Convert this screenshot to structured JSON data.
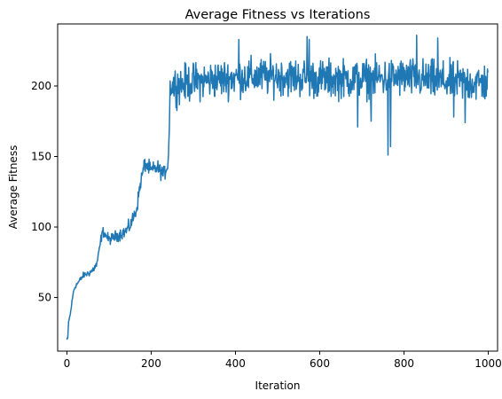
{
  "chart_data": {
    "type": "line",
    "title": "Average Fitness vs Iterations",
    "xlabel": "Iteration",
    "ylabel": "Average Fitness",
    "xlim": [
      -22,
      1022
    ],
    "ylim": [
      12,
      244
    ],
    "xticks": [
      0,
      200,
      400,
      600,
      800,
      1000
    ],
    "yticks": [
      50,
      100,
      150,
      200
    ],
    "grid": false,
    "series": [
      {
        "color": "#1f77b4",
        "anchors": [
          [
            0,
            20
          ],
          [
            2,
            21
          ],
          [
            4,
            33
          ],
          [
            8,
            38
          ],
          [
            12,
            47
          ],
          [
            16,
            55
          ],
          [
            20,
            58
          ],
          [
            30,
            62
          ],
          [
            40,
            66
          ],
          [
            50,
            67
          ],
          [
            60,
            69
          ],
          [
            70,
            73
          ],
          [
            75,
            80
          ],
          [
            80,
            90
          ],
          [
            85,
            97
          ],
          [
            100,
            91
          ],
          [
            120,
            94
          ],
          [
            140,
            97
          ],
          [
            150,
            101
          ],
          [
            165,
            112
          ],
          [
            175,
            132
          ],
          [
            185,
            145
          ],
          [
            200,
            140
          ],
          [
            215,
            142
          ],
          [
            230,
            137
          ],
          [
            240,
            145
          ],
          [
            243,
            170
          ],
          [
            245,
            200
          ],
          [
            300,
            203
          ],
          [
            400,
            206
          ],
          [
            500,
            207
          ],
          [
            600,
            205
          ],
          [
            700,
            205
          ],
          [
            800,
            206
          ],
          [
            900,
            203
          ],
          [
            1000,
            202
          ]
        ],
        "amplitude": [
          [
            0,
            1
          ],
          [
            80,
            3
          ],
          [
            180,
            5
          ],
          [
            244,
            5
          ],
          [
            250,
            12
          ],
          [
            1000,
            13
          ]
        ],
        "extremes": [
          [
            762,
            151
          ],
          [
            768,
            157
          ],
          [
            570,
            235
          ],
          [
            575,
            233
          ],
          [
            830,
            236
          ],
          [
            408,
            233
          ],
          [
            880,
            234
          ],
          [
            690,
            171
          ],
          [
            722,
            175
          ],
          [
            918,
            178
          ],
          [
            945,
            174
          ]
        ]
      }
    ]
  }
}
